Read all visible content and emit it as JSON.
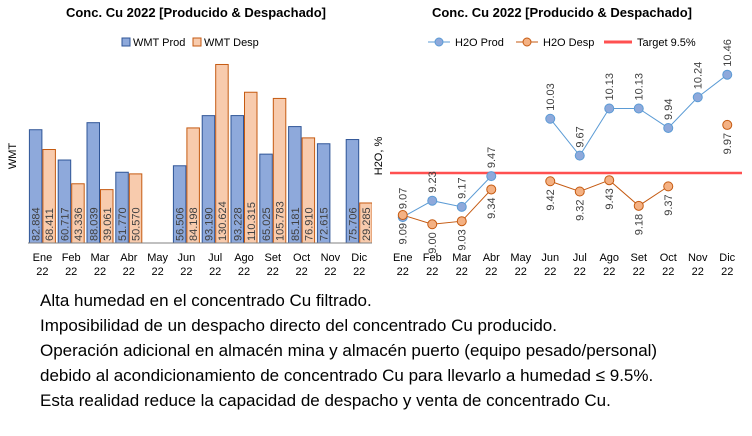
{
  "chart_data": [
    {
      "type": "bar",
      "title": "Conc. Cu 2022 [Producido & Despachado]",
      "ylabel": "WMT",
      "categories": [
        "Ene 22",
        "Feb 22",
        "Mar 22",
        "Abr 22",
        "May 22",
        "Jun 22",
        "Jul 22",
        "Ago 22",
        "Set 22",
        "Oct 22",
        "Nov 22",
        "Dic 22"
      ],
      "series": [
        {
          "name": "WMT Prod",
          "color": "#8EA9DB",
          "stroke": "#2F5597",
          "values": [
            82884,
            60717,
            88039,
            51770,
            null,
            56506,
            93190,
            93228,
            65025,
            85181,
            72615,
            75706
          ],
          "labels": [
            "82.884",
            "60.717",
            "88.039",
            "51.770",
            null,
            "56.506",
            "93.190",
            "93.228",
            "65.025",
            "85.181",
            "72.615",
            "75.706"
          ]
        },
        {
          "name": "WMT Desp",
          "color": "#F8CBAD",
          "stroke": "#C55A11",
          "values": [
            68411,
            43336,
            39061,
            50570,
            null,
            84198,
            130624,
            110315,
            105783,
            76910,
            null,
            29285
          ],
          "labels": [
            "68.411",
            "43.336",
            "39.061",
            "50.570",
            null,
            "84.198",
            "130.624",
            "110.315",
            "105.783",
            "76.910",
            null,
            "29.285"
          ]
        }
      ],
      "ylim": [
        0,
        150000
      ],
      "legend": "top-left"
    },
    {
      "type": "line",
      "title": "Conc. Cu 2022 [Producido & Despachado]",
      "ylabel": "H2O, %",
      "categories": [
        "Ene 22",
        "Feb 22",
        "Mar 22",
        "Abr 22",
        "May 22",
        "Jun 22",
        "Jul 22",
        "Ago 22",
        "Set 22",
        "Oct 22",
        "Nov 22",
        "Dic 22"
      ],
      "series": [
        {
          "name": "H2O Prod",
          "color": "#8EA9DB",
          "stroke": "#5B9BD5",
          "values": [
            9.07,
            9.23,
            9.17,
            9.47,
            null,
            10.03,
            9.67,
            10.13,
            10.13,
            9.94,
            10.24,
            10.46
          ],
          "labels": [
            "9.07",
            "9.23",
            "9.17",
            "9.47",
            null,
            "10.03",
            "9.67",
            "10.13",
            "10.13",
            "9.94",
            "10.24",
            "10.46"
          ]
        },
        {
          "name": "H2O Desp",
          "color": "#F4B183",
          "stroke": "#C55A11",
          "values": [
            9.09,
            9.0,
            9.03,
            9.34,
            null,
            9.42,
            9.32,
            9.43,
            9.18,
            9.37,
            null,
            9.97
          ],
          "labels": [
            "9.09",
            "9.00",
            "9.03",
            "9.34",
            null,
            "9.42",
            "9.32",
            "9.43",
            "9.18",
            "9.37",
            null,
            "9.97"
          ]
        }
      ],
      "target": {
        "name": "Target 9.5%",
        "value": 9.5,
        "color": "#FF5050"
      },
      "ylim": [
        8.7,
        10.75
      ],
      "legend": "top"
    }
  ],
  "notes": [
    "Alta humedad en el concentrado Cu filtrado.",
    "Imposibilidad de un despacho directo del concentrado Cu producido.",
    "Operación adicional en almacén mina y almacén puerto (equipo pesado/personal)",
    "debido al acondicionamiento de concentrado Cu para llevarlo a humedad ≤ 9.5%.",
    "Esta realidad reduce la capacidad de despacho y venta de concentrado Cu."
  ]
}
